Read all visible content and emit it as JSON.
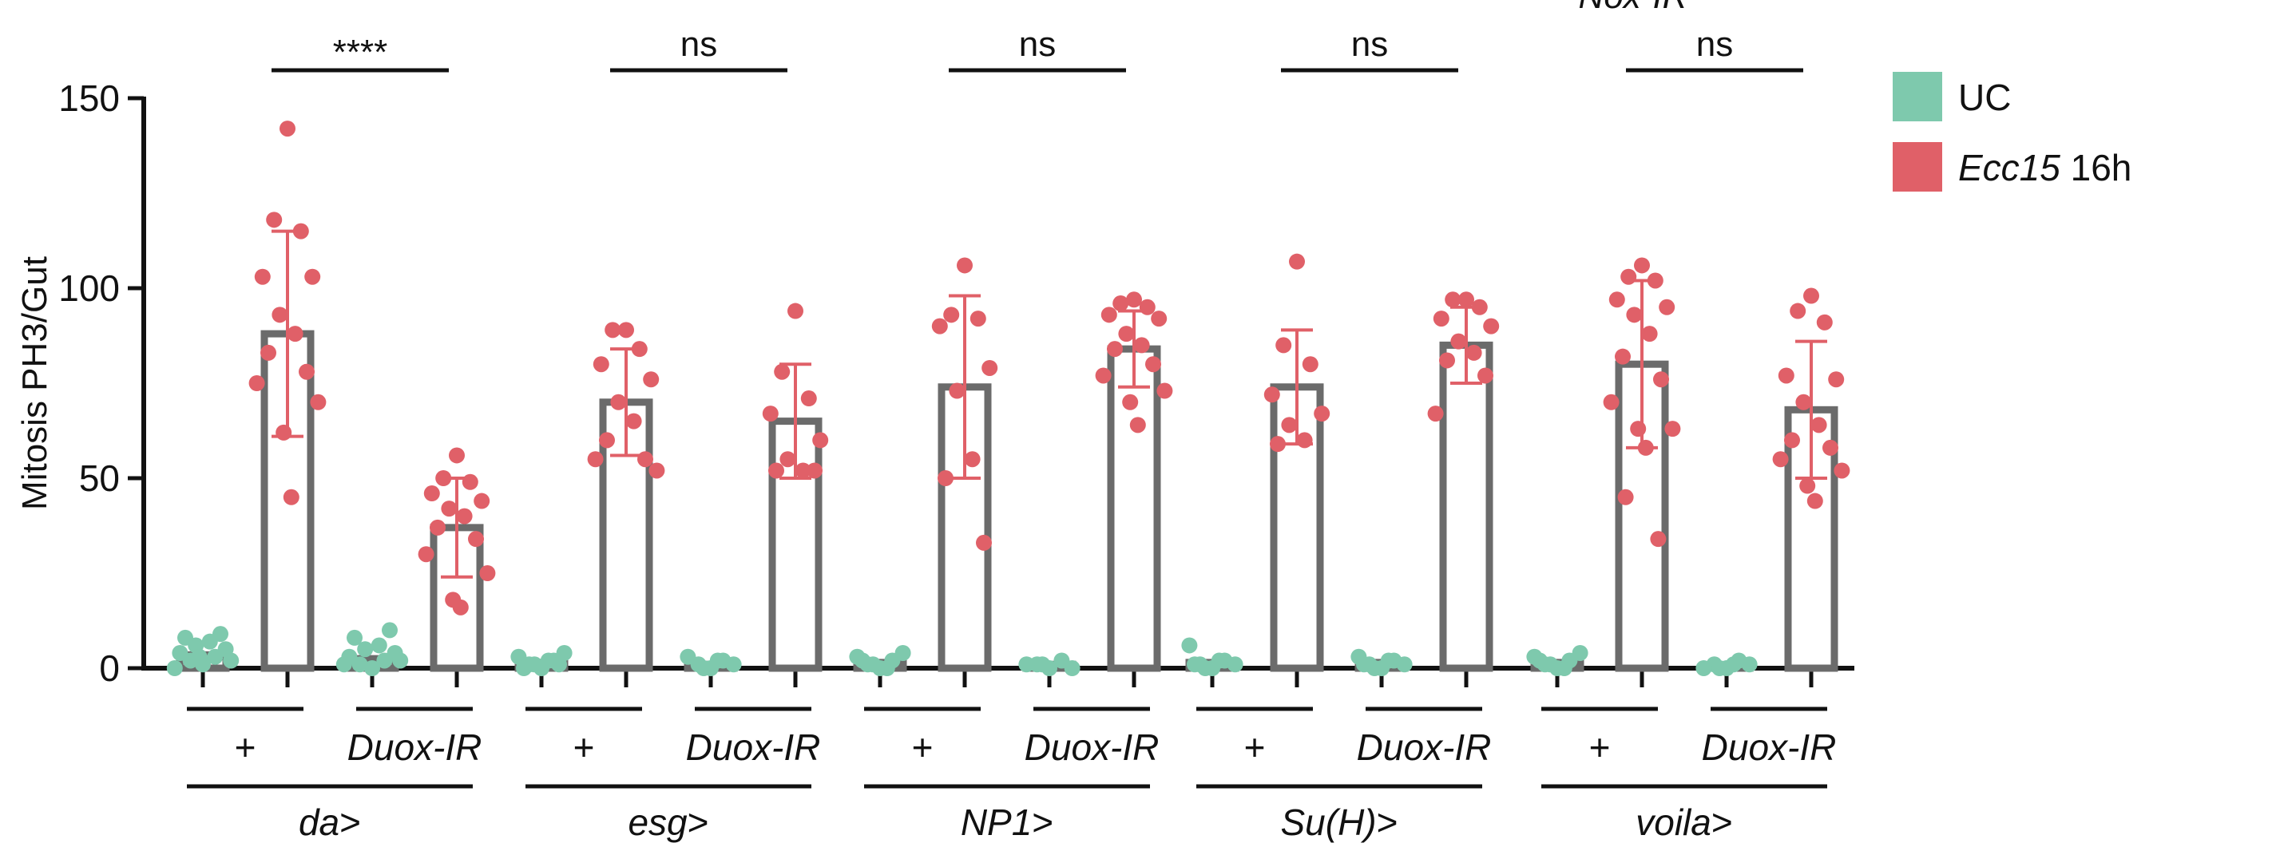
{
  "chart_data": {
    "type": "bar",
    "title": "Nox-IR",
    "ylabel": "Mitosis PH3/Gut",
    "ylim": [
      0,
      150
    ],
    "yticks": [
      0,
      50,
      100,
      150
    ],
    "grid": false,
    "legend_position": "right",
    "colors": {
      "UC": "#7ec9ad",
      "Ecc15": "#e06068",
      "bar_outline": "#6b6b6b",
      "axis": "#111111"
    },
    "legend": [
      {
        "label_italic": "",
        "label": "UC",
        "color": "#7ec9ad"
      },
      {
        "label_italic": "Ecc15",
        "label": " 16h",
        "color": "#e06068"
      }
    ],
    "groups": [
      {
        "driver_italic": "da",
        "driver_suffix": ">",
        "genotypes": [
          {
            "label": "+",
            "italic": false,
            "significance": "****",
            "UC": {
              "mean": 3.5,
              "points": [
                1,
                2,
                3,
                4,
                5,
                6,
                7,
                8,
                9,
                0,
                2,
                3
              ]
            },
            "Ecc15": {
              "mean": 88,
              "sd": 27,
              "points": [
                142,
                118,
                115,
                103,
                103,
                93,
                88,
                83,
                78,
                75,
                70,
                62,
                45
              ]
            }
          },
          {
            "label": "Duox-IR",
            "italic": true,
            "UC": {
              "mean": 2.5,
              "points": [
                0,
                1,
                2,
                3,
                4,
                5,
                6,
                8,
                10,
                1,
                2
              ]
            },
            "Ecc15": {
              "mean": 37,
              "sd": 13,
              "points": [
                56,
                50,
                49,
                46,
                44,
                42,
                40,
                37,
                34,
                30,
                25,
                18,
                16
              ]
            }
          }
        ]
      },
      {
        "driver_italic": "esg",
        "driver_suffix": ">",
        "genotypes": [
          {
            "label": "+",
            "italic": false,
            "significance": "ns",
            "UC": {
              "mean": 1.5,
              "points": [
                0,
                1,
                2,
                3,
                4,
                1,
                2,
                0,
                1
              ]
            },
            "Ecc15": {
              "mean": 70,
              "sd": 14,
              "points": [
                89,
                89,
                84,
                80,
                76,
                70,
                65,
                60,
                55,
                55,
                52
              ]
            }
          },
          {
            "label": "Duox-IR",
            "italic": true,
            "UC": {
              "mean": 1,
              "points": [
                0,
                1,
                2,
                3,
                1,
                0,
                2
              ]
            },
            "Ecc15": {
              "mean": 65,
              "sd": 15,
              "points": [
                94,
                78,
                71,
                67,
                60,
                55,
                52,
                52,
                52
              ]
            }
          }
        ]
      },
      {
        "driver_italic": "NP1",
        "driver_suffix": ">",
        "genotypes": [
          {
            "label": "+",
            "italic": false,
            "significance": "ns",
            "UC": {
              "mean": 1.5,
              "points": [
                0,
                1,
                2,
                3,
                4,
                1,
                0,
                2
              ]
            },
            "Ecc15": {
              "mean": 74,
              "sd": 24,
              "points": [
                106,
                93,
                92,
                90,
                79,
                73,
                55,
                50,
                33
              ]
            }
          },
          {
            "label": "Duox-IR",
            "italic": true,
            "UC": {
              "mean": 1,
              "points": [
                0,
                1,
                2,
                1,
                0,
                1
              ]
            },
            "Ecc15": {
              "mean": 84,
              "sd": 10,
              "points": [
                97,
                96,
                95,
                93,
                92,
                88,
                85,
                84,
                80,
                77,
                73,
                70,
                64
              ]
            }
          }
        ]
      },
      {
        "driver_italic": "Su(H)",
        "driver_suffix": ">",
        "genotypes": [
          {
            "label": "+",
            "italic": false,
            "significance": "ns",
            "UC": {
              "mean": 1.5,
              "points": [
                0,
                1,
                2,
                6,
                1,
                0,
                2,
                1
              ]
            },
            "Ecc15": {
              "mean": 74,
              "sd": 15,
              "points": [
                107,
                85,
                80,
                72,
                67,
                64,
                60,
                59
              ]
            }
          },
          {
            "label": "Duox-IR",
            "italic": true,
            "UC": {
              "mean": 1.5,
              "points": [
                0,
                1,
                2,
                3,
                1,
                0,
                2,
                1
              ]
            },
            "Ecc15": {
              "mean": 85,
              "sd": 10,
              "points": [
                97,
                97,
                95,
                92,
                90,
                86,
                83,
                81,
                77,
                67
              ]
            }
          }
        ]
      },
      {
        "driver_italic": "voila",
        "driver_suffix": ">",
        "genotypes": [
          {
            "label": "+",
            "italic": false,
            "significance": "ns",
            "UC": {
              "mean": 1.5,
              "points": [
                0,
                1,
                2,
                3,
                4,
                1,
                0,
                2
              ]
            },
            "Ecc15": {
              "mean": 80,
              "sd": 22,
              "points": [
                106,
                103,
                102,
                97,
                95,
                93,
                88,
                82,
                76,
                70,
                63,
                63,
                58,
                45,
                34
              ]
            }
          },
          {
            "label": "Duox-IR",
            "italic": true,
            "UC": {
              "mean": 0.5,
              "points": [
                0,
                1,
                2,
                0,
                1,
                0,
                1
              ]
            },
            "Ecc15": {
              "mean": 68,
              "sd": 18,
              "points": [
                98,
                94,
                91,
                77,
                76,
                70,
                64,
                60,
                58,
                55,
                52,
                48,
                44
              ]
            }
          }
        ]
      }
    ]
  }
}
